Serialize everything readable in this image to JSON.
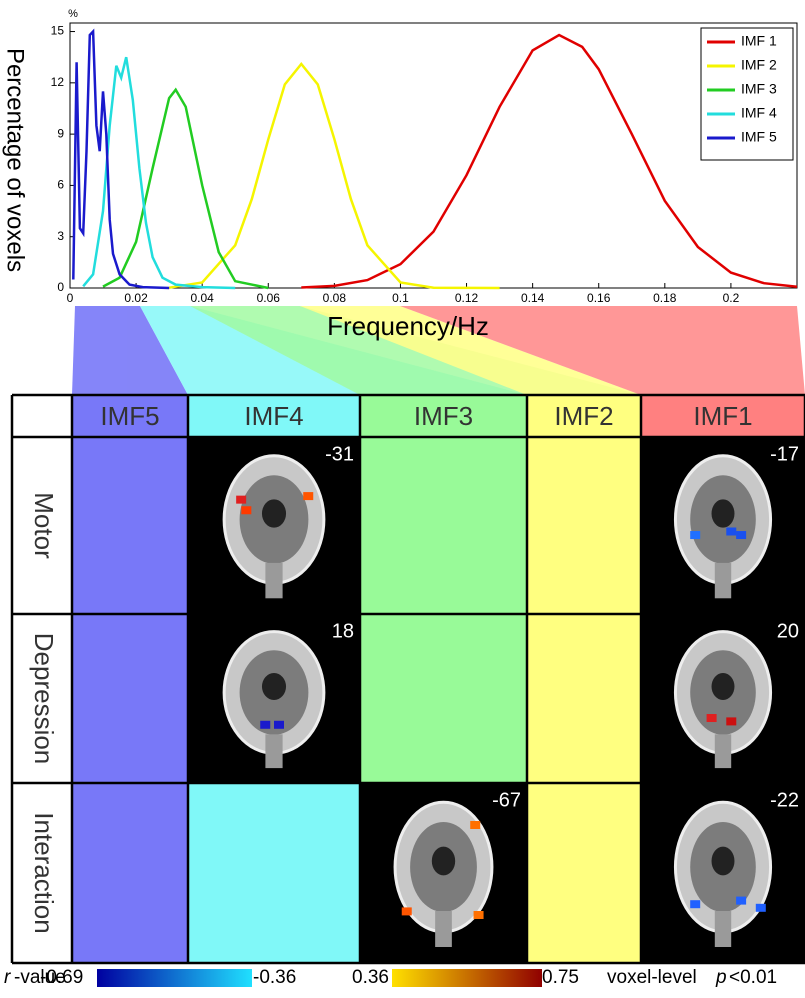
{
  "chart_data": {
    "type": "line",
    "y_unit": "%",
    "ylabel": "Percentage of voxels",
    "xlabel": "Frequency/Hz",
    "xlim": [
      0,
      0.22
    ],
    "ylim": [
      0,
      15.5
    ],
    "xticks": [
      0,
      0.02,
      0.04,
      0.06,
      0.08,
      0.1,
      0.12,
      0.14,
      0.16,
      0.18,
      0.2
    ],
    "yticks": [
      0,
      3,
      6,
      9,
      12,
      15
    ],
    "legend": "upper right",
    "series": [
      {
        "name": "IMF 1",
        "color": "#e00000",
        "x": [
          0.07,
          0.08,
          0.09,
          0.1,
          0.11,
          0.12,
          0.13,
          0.14,
          0.148,
          0.155,
          0.16,
          0.17,
          0.18,
          0.19,
          0.2,
          0.21,
          0.22
        ],
        "values": [
          0.03,
          0.12,
          0.46,
          1.4,
          3.3,
          6.6,
          10.6,
          13.9,
          14.8,
          14.1,
          12.8,
          9.0,
          5.1,
          2.4,
          0.9,
          0.28,
          0.07
        ]
      },
      {
        "name": "IMF 2",
        "color": "#f5f500",
        "x": [
          0.03,
          0.04,
          0.05,
          0.055,
          0.06,
          0.065,
          0.07,
          0.075,
          0.08,
          0.085,
          0.09,
          0.1,
          0.11,
          0.13
        ],
        "values": [
          0.02,
          0.32,
          2.5,
          5.2,
          8.7,
          11.9,
          13.1,
          11.9,
          8.7,
          5.2,
          2.5,
          0.32,
          0.02,
          0
        ]
      },
      {
        "name": "IMF 3",
        "color": "#22cc22",
        "x": [
          0.01,
          0.015,
          0.02,
          0.025,
          0.03,
          0.032,
          0.035,
          0.04,
          0.045,
          0.05,
          0.06
        ],
        "values": [
          0.08,
          0.6,
          2.7,
          7.0,
          11.1,
          11.6,
          10.6,
          6.0,
          2.1,
          0.4,
          0
        ]
      },
      {
        "name": "IMF 4",
        "color": "#22dddd",
        "x": [
          0.004,
          0.007,
          0.01,
          0.012,
          0.014,
          0.0155,
          0.017,
          0.019,
          0.021,
          0.023,
          0.025,
          0.028,
          0.032,
          0.04,
          0.05
        ],
        "values": [
          0.1,
          0.8,
          4.5,
          9.5,
          13,
          12.3,
          13.5,
          11,
          7,
          3.8,
          1.8,
          0.6,
          0.2,
          0.05,
          0
        ]
      },
      {
        "name": "IMF 5",
        "color": "#1a1acc",
        "x": [
          0.001,
          0.002,
          0.003,
          0.004,
          0.005,
          0.006,
          0.007,
          0.008,
          0.009,
          0.01,
          0.011,
          0.012,
          0.013,
          0.015,
          0.018,
          0.022,
          0.03
        ],
        "values": [
          0.5,
          13.2,
          3.5,
          3.2,
          8,
          14.8,
          15,
          9.5,
          8,
          11.5,
          9,
          4,
          2,
          0.8,
          0.2,
          0.05,
          0
        ]
      }
    ]
  },
  "table": {
    "columns": [
      {
        "name": "IMF5",
        "color": "#7878f8"
      },
      {
        "name": "IMF4",
        "color": "#80f8f8"
      },
      {
        "name": "IMF3",
        "color": "#98fa98"
      },
      {
        "name": "IMF2",
        "color": "#ffff80"
      },
      {
        "name": "IMF1",
        "color": "#ff8080"
      }
    ],
    "rows": [
      {
        "label": "Motor",
        "cells": [
          null,
          "-31",
          null,
          null,
          "-17"
        ]
      },
      {
        "label": "Depression",
        "cells": [
          null,
          "18",
          null,
          null,
          "20"
        ]
      },
      {
        "label": "Interaction",
        "cells": [
          null,
          null,
          "-67",
          null,
          "-22"
        ]
      }
    ]
  },
  "colorbar": {
    "variable": "r",
    "label": "-value",
    "negative": [
      -0.69,
      -0.36
    ],
    "positive": [
      0.36,
      0.75
    ],
    "threshold_text": "voxel-level",
    "threshold_variable": "p",
    "threshold_value": "<0.01"
  }
}
